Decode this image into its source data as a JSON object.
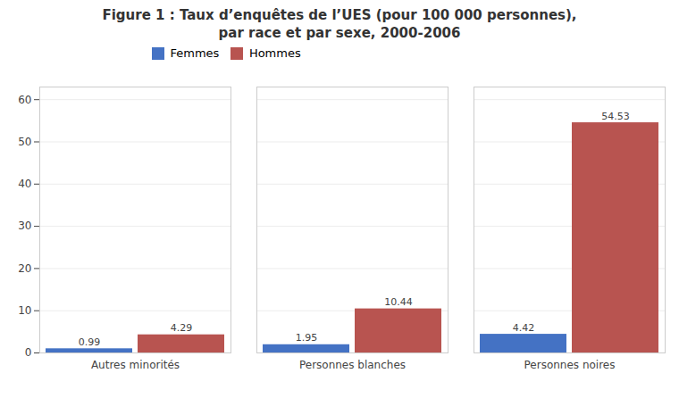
{
  "chart_data": {
    "type": "bar",
    "title": "Figure 1 : Taux d’enquêtes de l’UES (pour 100 000 personnes),\npar race et par sexe, 2000-2006",
    "categories": [
      "Autres minorités",
      "Personnes blanches",
      "Personnes noires"
    ],
    "series": [
      {
        "name": "Femmes",
        "color": "#4472C4",
        "values": [
          0.99,
          1.95,
          4.42
        ]
      },
      {
        "name": "Hommes",
        "color": "#B85450",
        "values": [
          4.29,
          10.44,
          54.53
        ]
      }
    ],
    "ylim": [
      0,
      63
    ],
    "yticks": [
      0,
      10,
      20,
      30,
      40,
      50,
      60
    ],
    "grid": true,
    "legend": "upper left",
    "data_labels": true
  }
}
